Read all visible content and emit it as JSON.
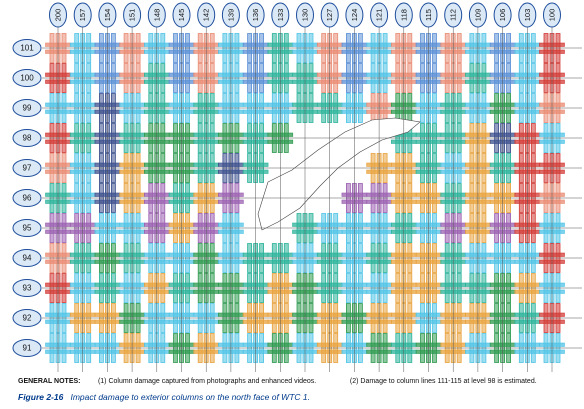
{
  "figure": {
    "columns": [
      "200",
      "157",
      "154",
      "151",
      "148",
      "145",
      "142",
      "139",
      "136",
      "133",
      "130",
      "127",
      "124",
      "121",
      "118",
      "115",
      "112",
      "109",
      "106",
      "103",
      "100"
    ],
    "levels": [
      "101",
      "100",
      "99",
      "98",
      "97",
      "96",
      "95",
      "94",
      "93",
      "92",
      "91"
    ],
    "notes": {
      "heading": "GENERAL NOTES:",
      "note1": "(1) Column damage captured from photographs and enhanced videos.",
      "note2": "(2) Damage to column lines 111-115 at level 98 is estimated."
    },
    "caption": {
      "label": "Figure 2-16",
      "text": "Impact damage to exterior columns on the north face of WTC 1."
    },
    "colors": {
      "blue": "#5b8fd6",
      "salmon": "#e98a72",
      "red": "#d23a35",
      "cyan": "#4fc3e6",
      "teal": "#2bb39a",
      "green": "#2e9a4f",
      "navy": "#3b4f8c",
      "purple": "#9a5fb0",
      "orange": "#e8a23c",
      "label_fill": "#dbe9f7",
      "label_stroke": "#1f4e9c"
    }
  }
}
